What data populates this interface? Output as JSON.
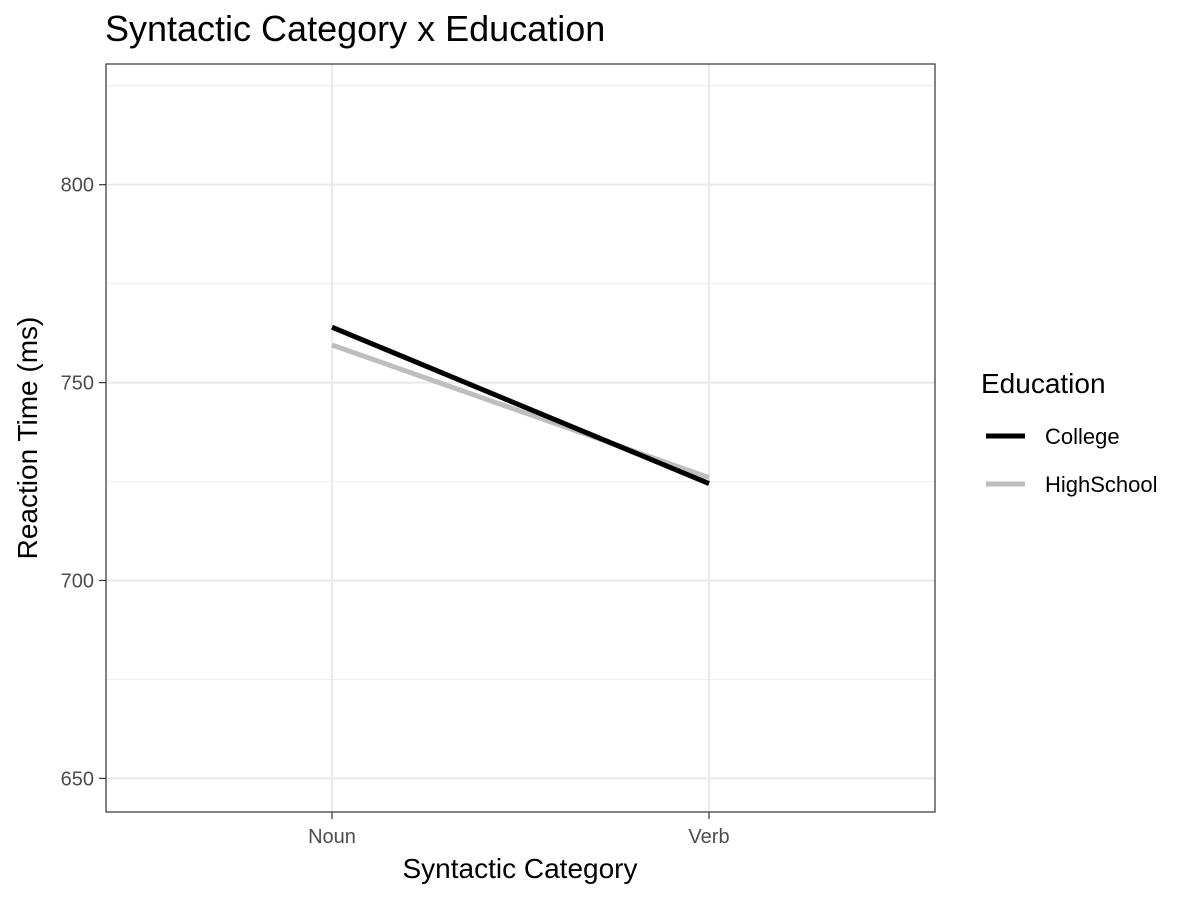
{
  "chart_data": {
    "type": "line",
    "title": "Syntactic Category x Education",
    "xlabel": "Syntactic Category",
    "ylabel": "Reaction Time (ms)",
    "categories": [
      "Noun",
      "Verb"
    ],
    "ylim": [
      641.5,
      830.5
    ],
    "yticks": [
      650,
      700,
      750,
      800
    ],
    "grid": true,
    "legend": {
      "title": "Education",
      "position": "right"
    },
    "series": [
      {
        "name": "College",
        "values": [
          764,
          724.5
        ],
        "color": "#000000"
      },
      {
        "name": "HighSchool",
        "values": [
          759.5,
          726
        ],
        "color": "#bebebe"
      }
    ]
  }
}
